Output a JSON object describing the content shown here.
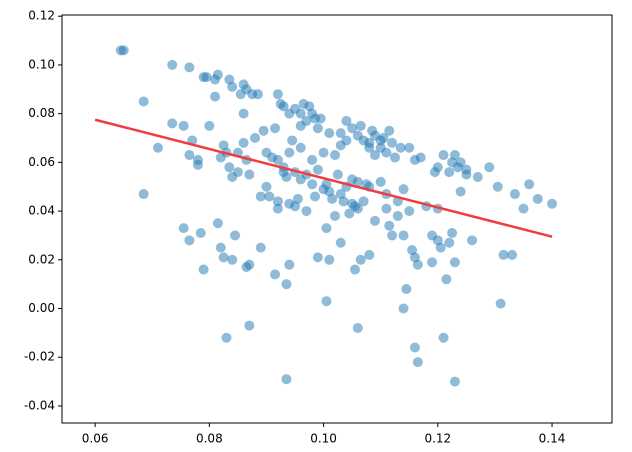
{
  "chart_data": {
    "type": "scatter",
    "series": [
      {
        "color": "#1f77b4",
        "x": [
          0.0645,
          0.065,
          0.0685,
          0.0685,
          0.071,
          0.0735,
          0.0735,
          0.0755,
          0.0765,
          0.0755,
          0.0765,
          0.0765,
          0.077,
          0.078,
          0.078,
          0.0785,
          0.079,
          0.079,
          0.0795,
          0.08,
          0.081,
          0.0815,
          0.081,
          0.0815,
          0.082,
          0.082,
          0.0825,
          0.0825,
          0.083,
          0.0835,
          0.084,
          0.0835,
          0.084,
          0.0845,
          0.084,
          0.083,
          0.085,
          0.085,
          0.0855,
          0.086,
          0.086,
          0.086,
          0.0865,
          0.0865,
          0.0865,
          0.087,
          0.087,
          0.087,
          0.0875,
          0.088,
          0.0885,
          0.089,
          0.089,
          0.0895,
          0.09,
          0.09,
          0.0905,
          0.091,
          0.0915,
          0.0915,
          0.092,
          0.092,
          0.092,
          0.092,
          0.0925,
          0.093,
          0.093,
          0.093,
          0.0935,
          0.0935,
          0.0935,
          0.094,
          0.094,
          0.094,
          0.094,
          0.0945,
          0.095,
          0.095,
          0.095,
          0.0955,
          0.096,
          0.096,
          0.096,
          0.096,
          0.0965,
          0.097,
          0.097,
          0.097,
          0.0975,
          0.098,
          0.098,
          0.098,
          0.0985,
          0.0985,
          0.099,
          0.099,
          0.099,
          0.0995,
          0.1,
          0.1,
          0.1005,
          0.1005,
          0.1005,
          0.101,
          0.101,
          0.101,
          0.1015,
          0.102,
          0.102,
          0.1025,
          0.103,
          0.103,
          0.103,
          0.103,
          0.1035,
          0.104,
          0.104,
          0.104,
          0.1045,
          0.105,
          0.105,
          0.105,
          0.1055,
          0.1055,
          0.106,
          0.106,
          0.106,
          0.106,
          0.1065,
          0.1065,
          0.107,
          0.107,
          0.1075,
          0.108,
          0.108,
          0.108,
          0.108,
          0.1085,
          0.109,
          0.109,
          0.109,
          0.11,
          0.11,
          0.11,
          0.1105,
          0.111,
          0.111,
          0.111,
          0.1115,
          0.1115,
          0.112,
          0.112,
          0.1125,
          0.113,
          0.113,
          0.1135,
          0.114,
          0.114,
          0.114,
          0.1145,
          0.115,
          0.115,
          0.1155,
          0.116,
          0.116,
          0.116,
          0.1165,
          0.1165,
          0.117,
          0.118,
          0.119,
          0.119,
          0.1195,
          0.12,
          0.12,
          0.12,
          0.1205,
          0.121,
          0.121,
          0.1215,
          0.122,
          0.122,
          0.1225,
          0.1225,
          0.123,
          0.123,
          0.123,
          0.1235,
          0.124,
          0.124,
          0.125,
          0.125,
          0.126,
          0.127,
          0.129,
          0.1305,
          0.131,
          0.1315,
          0.133,
          0.1335,
          0.135,
          0.136,
          0.1375,
          0.14
        ],
        "values": [
          0.106,
          0.106,
          0.085,
          0.047,
          0.066,
          0.1,
          0.076,
          0.075,
          0.099,
          0.033,
          0.028,
          0.063,
          0.069,
          0.061,
          0.059,
          0.031,
          0.016,
          0.095,
          0.095,
          0.075,
          0.094,
          0.096,
          0.087,
          0.035,
          0.062,
          0.025,
          0.021,
          0.067,
          0.064,
          0.094,
          0.091,
          0.058,
          0.054,
          0.03,
          0.02,
          -0.012,
          0.064,
          0.056,
          0.088,
          0.092,
          0.08,
          0.068,
          0.09,
          0.061,
          0.017,
          0.018,
          0.055,
          -0.007,
          0.088,
          0.07,
          0.088,
          0.025,
          0.046,
          0.073,
          0.064,
          0.05,
          0.046,
          0.062,
          0.074,
          0.014,
          0.088,
          0.061,
          0.044,
          0.041,
          0.084,
          0.083,
          0.058,
          0.056,
          0.054,
          0.01,
          -0.029,
          0.08,
          0.064,
          0.043,
          0.018,
          0.069,
          0.082,
          0.056,
          0.042,
          0.045,
          0.08,
          0.075,
          0.066,
          0.053,
          0.084,
          0.077,
          0.055,
          0.04,
          0.083,
          0.08,
          0.061,
          0.051,
          0.078,
          0.046,
          0.074,
          0.057,
          0.021,
          0.078,
          0.064,
          0.049,
          0.051,
          0.033,
          0.003,
          0.072,
          0.048,
          0.02,
          0.045,
          0.063,
          0.038,
          0.055,
          0.067,
          0.072,
          0.047,
          0.027,
          0.044,
          0.077,
          0.069,
          0.05,
          0.039,
          0.074,
          0.053,
          0.043,
          0.042,
          0.016,
          0.071,
          0.052,
          0.041,
          -0.008,
          0.075,
          0.02,
          0.069,
          0.044,
          0.051,
          0.068,
          0.066,
          0.05,
          0.022,
          0.073,
          0.071,
          0.063,
          0.036,
          0.069,
          0.066,
          0.052,
          0.07,
          0.064,
          0.047,
          0.041,
          0.073,
          0.034,
          0.068,
          0.03,
          0.062,
          0.044,
          0.038,
          0.066,
          0.049,
          0.03,
          0,
          0.008,
          0.066,
          0.04,
          0.024,
          0.061,
          0.021,
          -0.016,
          0.018,
          -0.022,
          0.062,
          0.042,
          0.03,
          0.019,
          0.056,
          0.058,
          0.041,
          0.028,
          0.025,
          0.063,
          -0.012,
          0.012,
          0.056,
          0.027,
          0.06,
          0.031,
          0.063,
          0.019,
          -0.03,
          0.058,
          0.06,
          0.048,
          0.057,
          0.055,
          0.028,
          0.054,
          0.058,
          0.05,
          0.002,
          0.022,
          0.022,
          0.047,
          0.041,
          0.051,
          0.045,
          0.043
        ]
      }
    ],
    "fit_line": {
      "color": "#f03c3c",
      "x": [
        0.06,
        0.14
      ],
      "values": [
        0.0775,
        0.0295
      ]
    },
    "xlim": [
      0.0542,
      0.1505
    ],
    "ylim": [
      -0.047,
      0.1205
    ],
    "xticks": [
      0.06,
      0.08,
      {
        "value": 0.1,
        "label": "0.10"
      },
      0.12,
      0.14
    ],
    "yticks": [
      -0.04,
      -0.02,
      {
        "value": 0,
        "label": "0.00"
      },
      0.02,
      0.04,
      0.06,
      0.08,
      {
        "value": 0.1,
        "label": "0.10"
      },
      0.12
    ]
  }
}
